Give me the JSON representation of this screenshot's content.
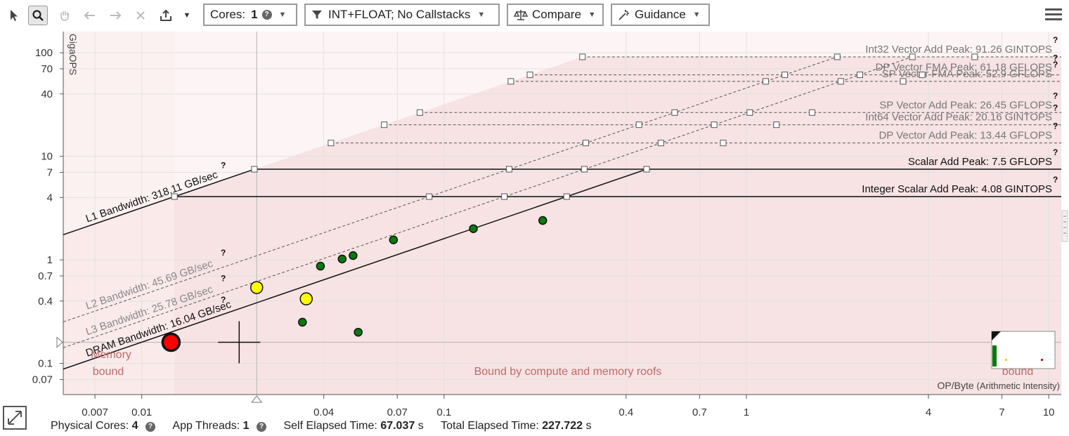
{
  "toolbar": {
    "cores_label": "Cores:",
    "cores_value": "1",
    "filter_label": "INT+FLOAT; No Callstacks",
    "compare_label": "Compare",
    "guidance_label": "Guidance",
    "icons": [
      "pointer-icon",
      "zoom-icon",
      "pan-icon",
      "undo-icon",
      "redo-icon",
      "clear-icon",
      "export-icon",
      "menu-icon"
    ]
  },
  "footer": {
    "physical_cores_label": "Physical Cores:",
    "physical_cores_value": "4",
    "app_threads_label": "App Threads:",
    "app_threads_value": "1",
    "self_elapsed_label": "Self Elapsed Time:",
    "self_elapsed_value": "67.037",
    "total_elapsed_label": "Total Elapsed Time:",
    "total_elapsed_value": "227.722",
    "time_unit": "s"
  },
  "chart_data": {
    "type": "scatter",
    "subtype": "roofline",
    "xlabel": "OP/Byte",
    "xlabel_suffix": "(Arithmetic Intensity)",
    "ylabel": "GigaOPS",
    "x_scale": "log",
    "y_scale": "log",
    "xlim": [
      0.0055,
      11
    ],
    "ylim": [
      0.05,
      160
    ],
    "x_ticks": [
      0.007,
      0.01,
      0.04,
      0.07,
      0.1,
      0.4,
      0.7,
      1,
      4,
      7,
      10
    ],
    "x_tick_labels": [
      "0.007",
      "0.01",
      "0.04",
      "0.07",
      "0.1",
      "0.4",
      "0.7",
      "1",
      "4",
      "7",
      "10"
    ],
    "y_ticks": [
      0.07,
      0.1,
      0.4,
      0.7,
      1,
      4,
      7,
      10,
      40,
      70,
      100
    ],
    "y_tick_labels": [
      "0.07",
      "0.1",
      "0.4",
      "0.7",
      "1",
      "4",
      "7",
      "10",
      "40",
      "70",
      "100"
    ],
    "bandwidth_roofs": [
      {
        "name": "L1 Bandwidth: 318.11 GB/sec",
        "value": 318.11,
        "style": "solid"
      },
      {
        "name": "L2 Bandwidth: 45.69 GB/sec",
        "value": 45.69,
        "style": "dashed"
      },
      {
        "name": "L3 Bandwidth: 25.78 GB/sec",
        "value": 25.78,
        "style": "dashed"
      },
      {
        "name": "DRAM Bandwidth: 16.04 GB/sec",
        "value": 16.04,
        "style": "solid"
      }
    ],
    "compute_roofs": [
      {
        "name": "Int32 Vector Add Peak: 91.26 GINTOPS",
        "value": 91.26,
        "style": "dashed"
      },
      {
        "name": "DP Vector FMA Peak: 61.18 GFLOPS",
        "value": 61.18,
        "style": "dashed"
      },
      {
        "name": "SP Vector FMA Peak: 52.9 GFLOPS",
        "value": 52.9,
        "style": "dashed"
      },
      {
        "name": "SP Vector Add Peak: 26.45 GFLOPS",
        "value": 26.45,
        "style": "dashed"
      },
      {
        "name": "Int64 Vector Add Peak: 20.16 GINTOPS",
        "value": 20.16,
        "style": "dashed"
      },
      {
        "name": "DP Vector Add Peak: 13.44 GFLOPS",
        "value": 13.44,
        "style": "dashed"
      },
      {
        "name": "Scalar Add Peak: 7.5 GFLOPS",
        "value": 7.5,
        "style": "solid"
      },
      {
        "name": "Integer Scalar Add Peak: 4.08 GINTOPS",
        "value": 4.08,
        "style": "solid"
      }
    ],
    "points": [
      {
        "x": 0.0125,
        "y": 0.16,
        "color": "#ff0000",
        "size": "large"
      },
      {
        "x": 0.024,
        "y": 0.54,
        "color": "#ffff00",
        "size": "medium"
      },
      {
        "x": 0.035,
        "y": 0.42,
        "color": "#ffff00",
        "size": "medium"
      },
      {
        "x": 0.034,
        "y": 0.25,
        "color": "#0a7a0a",
        "size": "small"
      },
      {
        "x": 0.039,
        "y": 0.87,
        "color": "#0a7a0a",
        "size": "small"
      },
      {
        "x": 0.046,
        "y": 1.02,
        "color": "#0a7a0a",
        "size": "small"
      },
      {
        "x": 0.05,
        "y": 1.1,
        "color": "#0a7a0a",
        "size": "small"
      },
      {
        "x": 0.052,
        "y": 0.2,
        "color": "#0a7a0a",
        "size": "small"
      },
      {
        "x": 0.068,
        "y": 1.56,
        "color": "#0a7a0a",
        "size": "small"
      },
      {
        "x": 0.125,
        "y": 2.0,
        "color": "#0a7a0a",
        "size": "small"
      },
      {
        "x": 0.212,
        "y": 2.4,
        "color": "#0a7a0a",
        "size": "small"
      }
    ],
    "region_labels": {
      "memory": [
        "Memory",
        "bound"
      ],
      "middle": "Bound by compute and memory roofs",
      "compute": "bound"
    }
  }
}
